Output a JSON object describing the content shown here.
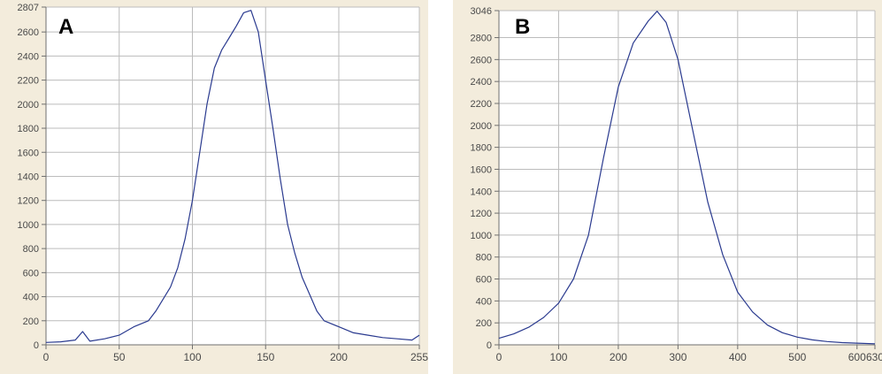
{
  "colors": {
    "panel_background": "#f3ecdc",
    "plot_background": "#ffffff",
    "grid": "#bcbcbc",
    "axis": "#6f6f6f",
    "tick_label": "#4a4a4a",
    "series": "#2a3a8f"
  },
  "chart_data": [
    {
      "type": "line",
      "panel_label": "A",
      "title": "",
      "xlabel": "",
      "ylabel": "",
      "xlim": [
        0,
        255
      ],
      "ylim": [
        0,
        2807
      ],
      "grid": true,
      "x_ticks": [
        0,
        50,
        100,
        150,
        200,
        255
      ],
      "x_tick_labels": [
        "0",
        "50",
        "100",
        "150",
        "200",
        "255"
      ],
      "y_ticks": [
        0,
        200,
        400,
        600,
        800,
        1000,
        1200,
        1400,
        1600,
        1800,
        2000,
        2200,
        2400,
        2600,
        2807
      ],
      "y_tick_labels": [
        "0",
        "200",
        "400",
        "600",
        "800",
        "1000",
        "1200",
        "1400",
        "1600",
        "1800",
        "2000",
        "2200",
        "2400",
        "2600",
        "2807"
      ],
      "series": [
        {
          "x": [
            0,
            10,
            20,
            25,
            30,
            40,
            50,
            60,
            70,
            75,
            80,
            85,
            90,
            95,
            100,
            105,
            110,
            115,
            120,
            125,
            130,
            135,
            140,
            145,
            150,
            155,
            160,
            165,
            170,
            175,
            180,
            185,
            190,
            200,
            210,
            220,
            230,
            240,
            250,
            255
          ],
          "y": [
            20,
            25,
            40,
            110,
            30,
            50,
            80,
            150,
            200,
            280,
            380,
            480,
            640,
            880,
            1200,
            1600,
            2000,
            2300,
            2450,
            2550,
            2650,
            2760,
            2780,
            2600,
            2200,
            1800,
            1380,
            1000,
            760,
            560,
            420,
            280,
            200,
            150,
            100,
            80,
            60,
            50,
            40,
            80
          ]
        }
      ]
    },
    {
      "type": "line",
      "panel_label": "B",
      "title": "",
      "xlabel": "",
      "ylabel": "",
      "xlim": [
        0,
        630
      ],
      "ylim": [
        0,
        3046
      ],
      "grid": true,
      "x_ticks": [
        0,
        100,
        200,
        300,
        400,
        500,
        600,
        630
      ],
      "x_tick_labels": [
        "0",
        "100",
        "200",
        "300",
        "400",
        "500",
        "600",
        "630"
      ],
      "y_ticks": [
        0,
        200,
        400,
        600,
        800,
        1000,
        1200,
        1400,
        1600,
        1800,
        2000,
        2200,
        2400,
        2600,
        2800,
        3046
      ],
      "y_tick_labels": [
        "0",
        "200",
        "400",
        "600",
        "800",
        "1000",
        "1200",
        "1400",
        "1600",
        "1800",
        "2000",
        "2200",
        "2400",
        "2600",
        "2800",
        "3046"
      ],
      "series": [
        {
          "x": [
            0,
            25,
            50,
            75,
            100,
            125,
            150,
            175,
            200,
            225,
            250,
            265,
            280,
            300,
            325,
            350,
            375,
            400,
            425,
            450,
            475,
            500,
            525,
            550,
            575,
            600,
            630
          ],
          "y": [
            60,
            100,
            160,
            250,
            380,
            600,
            1000,
            1700,
            2350,
            2750,
            2950,
            3040,
            2940,
            2600,
            1950,
            1300,
            820,
            480,
            300,
            180,
            110,
            70,
            45,
            30,
            20,
            15,
            10
          ]
        }
      ]
    }
  ]
}
